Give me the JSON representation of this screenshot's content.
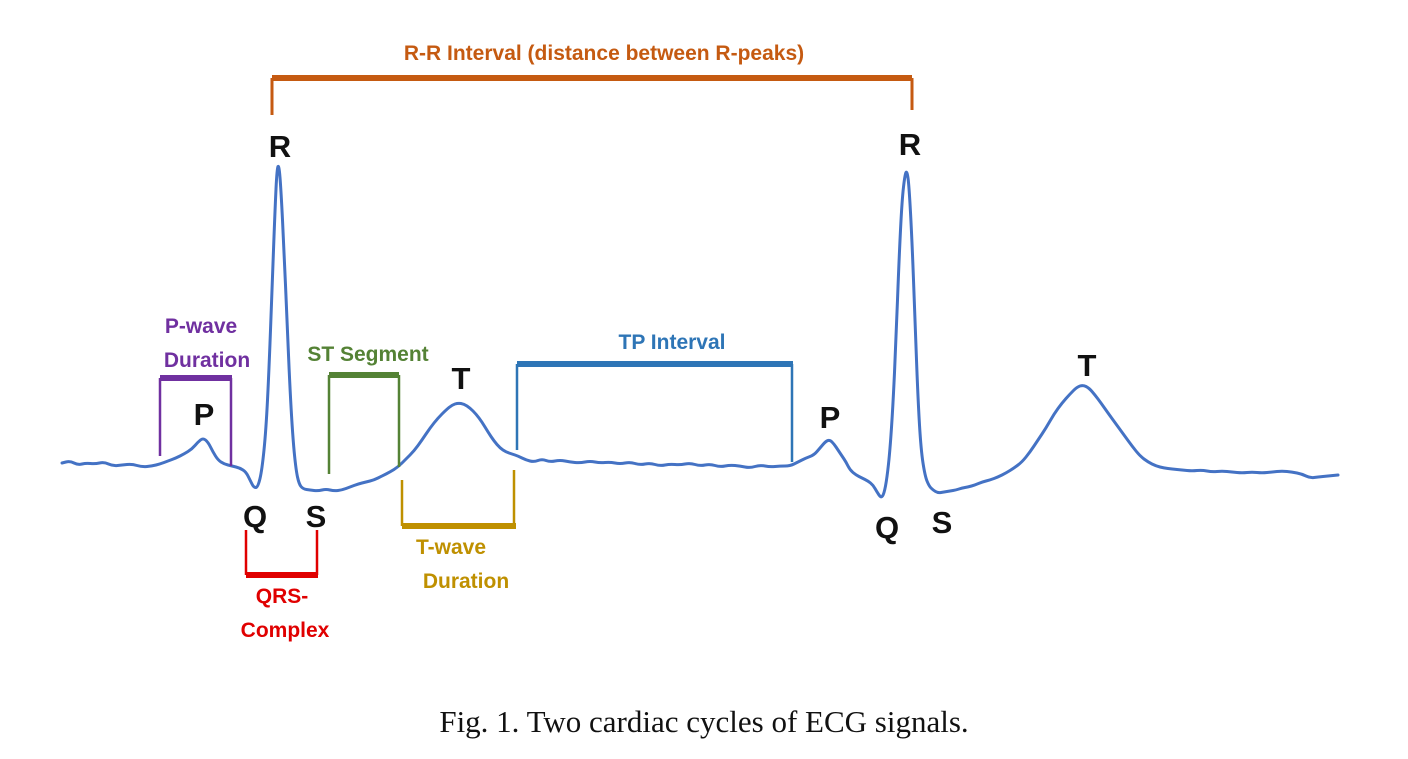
{
  "colors": {
    "signal": "#4472C4",
    "rr_interval": "#C55A11",
    "p_wave": "#7030A0",
    "st_segment": "#548235",
    "tp_interval": "#2E75B6",
    "qrs_complex": "#E00000",
    "t_wave": "#BF9000",
    "wave_labels": "#111111"
  },
  "signal": {
    "description": "ECG trace with two cardiac cycles"
  },
  "wave_labels": {
    "cycle1": {
      "p": "P",
      "q": "Q",
      "r": "R",
      "s": "S",
      "t": "T"
    },
    "cycle2": {
      "p": "P",
      "q": "Q",
      "r": "R",
      "s": "S",
      "t": "T"
    }
  },
  "intervals": {
    "rr": {
      "label": "R-R Interval (distance between R-peaks)"
    },
    "p_wave": {
      "line1": "P-wave",
      "line2": "Duration"
    },
    "st": {
      "label": "ST Segment"
    },
    "tp": {
      "label": "TP Interval"
    },
    "qrs": {
      "line1": "QRS-",
      "line2": "Complex"
    },
    "t_wave": {
      "line1": "T-wave",
      "line2": "Duration"
    }
  },
  "caption": "Fig. 1.  Two cardiac cycles of ECG signals."
}
